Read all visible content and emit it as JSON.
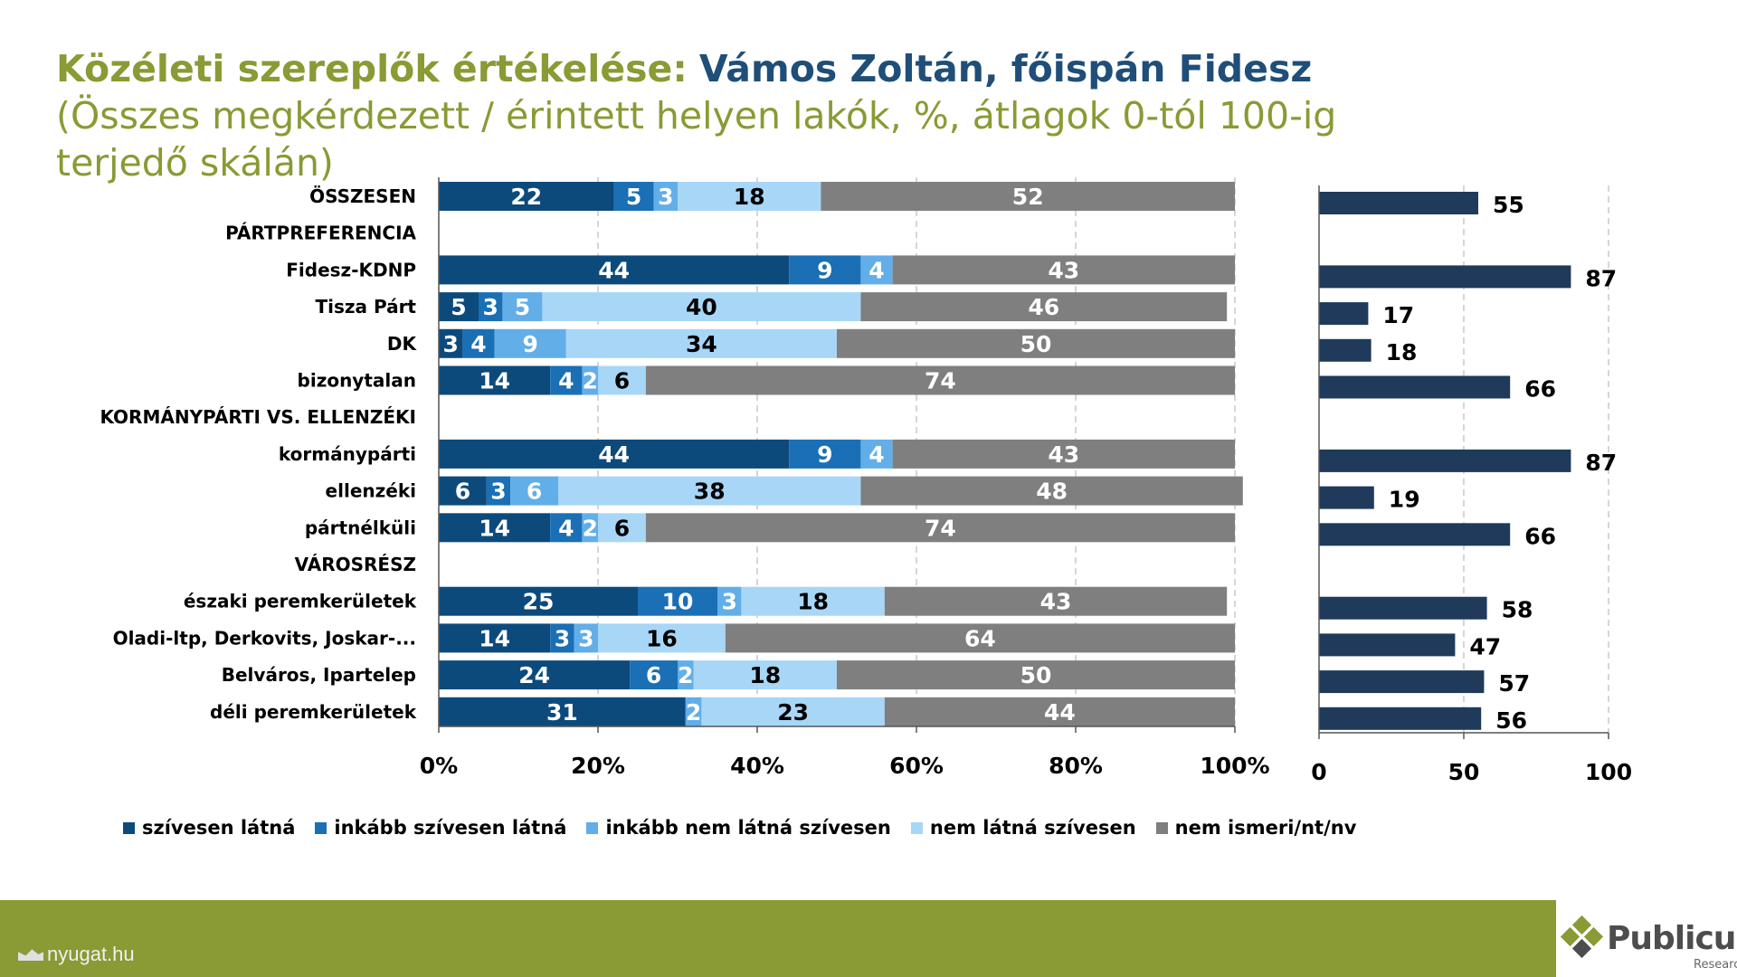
{
  "title": {
    "main": "Közéleti szereplők értékelése:",
    "name": "Vámos Zoltán, főispán Fidesz",
    "sub": "(Összes megkérdezett / érintett helyen lakók, %, átlagok 0-tól 100-ig terjedő skálán)"
  },
  "colors": {
    "series": [
      "#0d4a7c",
      "#1a6fb5",
      "#62aee8",
      "#a8d6f7",
      "#7f7f7f"
    ],
    "avg_bar": "#1f3a5a",
    "title_green": "#8a9a34",
    "title_blue": "#1f4e79",
    "footer": "#8a9a34"
  },
  "chart_data": [
    {
      "type": "bar",
      "orientation": "horizontal",
      "stacked": "percent",
      "categories": [
        "ÖSSZESEN",
        "PÁRTPREFERENCIA",
        "Fidesz-KDNP",
        "Tisza Párt",
        "DK",
        "bizonytalan",
        "KORMÁNYPÁRTI VS. ELLENZÉKI",
        "kormánypárti",
        "ellenzéki",
        "pártnélküli",
        "VÁROSRÉSZ",
        "északi peremkerületek",
        "Oladi-ltp, Derkovits, Joskar-...",
        "Belváros, Ipartelep",
        "déli peremkerületek"
      ],
      "series": [
        {
          "name": "szívesen látná",
          "values": [
            22,
            null,
            44,
            5,
            3,
            14,
            null,
            44,
            6,
            14,
            null,
            25,
            14,
            24,
            31
          ]
        },
        {
          "name": "inkább szívesen látná",
          "values": [
            5,
            null,
            9,
            3,
            4,
            4,
            null,
            9,
            3,
            4,
            null,
            10,
            3,
            6,
            null
          ]
        },
        {
          "name": "inkább nem látná szívesen",
          "values": [
            3,
            null,
            4,
            5,
            9,
            2,
            null,
            4,
            6,
            2,
            null,
            3,
            3,
            2,
            2
          ]
        },
        {
          "name": "nem látná szívesen",
          "values": [
            18,
            null,
            null,
            40,
            34,
            6,
            null,
            null,
            38,
            6,
            null,
            18,
            16,
            18,
            23
          ]
        },
        {
          "name": "nem ismeri/nt/nv",
          "values": [
            52,
            null,
            43,
            46,
            50,
            74,
            null,
            43,
            48,
            74,
            null,
            43,
            64,
            50,
            44
          ]
        }
      ],
      "xlim": [
        0,
        100
      ],
      "xticks": [
        "0%",
        "20%",
        "40%",
        "60%",
        "80%",
        "100%"
      ],
      "grid": true,
      "legend": "bottom"
    },
    {
      "type": "bar",
      "orientation": "horizontal",
      "categories": [
        "ÖSSZESEN",
        "PÁRTPREFERENCIA",
        "Fidesz-KDNP",
        "Tisza Párt",
        "DK",
        "bizonytalan",
        "KORMÁNYPÁRTI VS. ELLENZÉKI",
        "kormánypárti",
        "ellenzéki",
        "pártnélküli",
        "VÁROSRÉSZ",
        "északi peremkerületek",
        "Oladi-ltp, Derkovits, Joskar-...",
        "Belváros, Ipartelep",
        "déli peremkerületek"
      ],
      "values": [
        55,
        null,
        87,
        17,
        18,
        66,
        null,
        87,
        19,
        66,
        null,
        58,
        47,
        57,
        56
      ],
      "xlim": [
        0,
        100
      ],
      "xticks": [
        "0",
        "50",
        "100"
      ],
      "grid": true
    }
  ],
  "footer": {
    "source": "nyugat.hu",
    "logo_name": "Publicus",
    "logo_sub": "Research"
  }
}
